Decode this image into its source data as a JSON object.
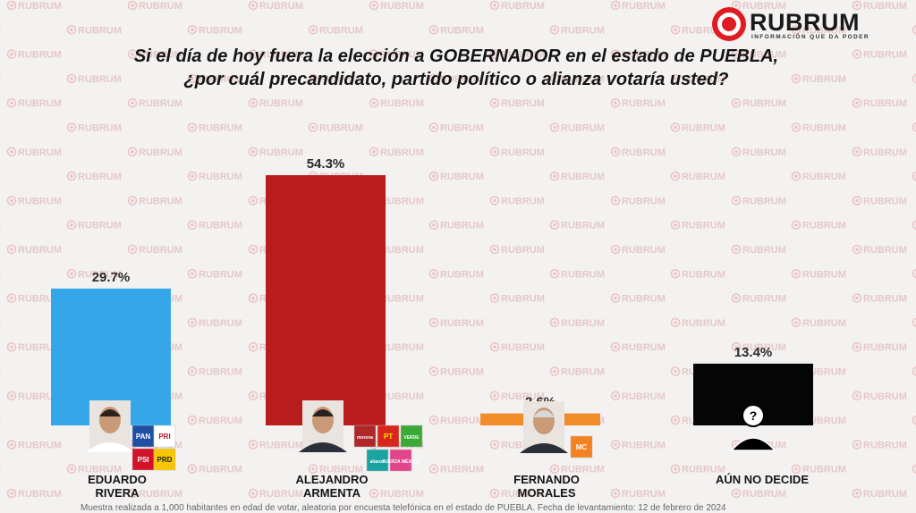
{
  "brand": {
    "name": "RUBRUM",
    "tagline": "INFORMACIÓN QUE DA PODER",
    "watermark_text": "RUBRUM",
    "color": "#e11b22"
  },
  "title": {
    "line1": "Si el día de hoy fuera la elección a GOBERNADOR en el estado de PUEBLA,",
    "line2": "¿por cuál precandidato, partido político o alianza votaría usted?"
  },
  "chart_data": {
    "type": "bar",
    "title": "Si el día de hoy fuera la elección a GOBERNADOR en el estado de PUEBLA, ¿por cuál precandidato, partido político o alianza votaría usted?",
    "categories": [
      [
        "EDUARDO",
        "RIVERA"
      ],
      [
        "ALEJANDRO",
        "ARMENTA"
      ],
      [
        "FERNANDO",
        "MORALES"
      ],
      [
        "AÚN NO DECIDE"
      ]
    ],
    "values": [
      29.7,
      54.3,
      2.6,
      13.4
    ],
    "value_labels": [
      "29.7%",
      "54.3%",
      "2.6%",
      "13.4%"
    ],
    "colors": [
      "#35a6e8",
      "#b91c1c",
      "#f28c28",
      "#050505"
    ],
    "party_logos": [
      [
        {
          "name": "pan-logo",
          "text": "PAN",
          "color": "#1f4fa3",
          "fg": "#ffffff"
        },
        {
          "name": "pri-logo",
          "text": "PRI",
          "color": "#ffffff",
          "fg": "#c8102e"
        },
        {
          "name": "psi-logo",
          "text": "PSI",
          "color": "#d3122a",
          "fg": "#ffffff"
        },
        {
          "name": "prd-logo",
          "text": "PRD",
          "color": "#f7c600",
          "fg": "#222222"
        }
      ],
      [
        {
          "name": "morena-logo",
          "text": "morena",
          "color": "#b0272a",
          "fg": "#ffffff"
        },
        {
          "name": "pt-logo",
          "text": "PT",
          "color": "#d9261c",
          "fg": "#ffde00"
        },
        {
          "name": "verde-logo",
          "text": "VERDE",
          "color": "#3aa935",
          "fg": "#ffffff"
        },
        {
          "name": "nueva-alianza-logo",
          "text": "alianza",
          "color": "#1aa3a3",
          "fg": "#ffffff"
        },
        {
          "name": "fuerza-mexico-logo",
          "text": "FUERZA MÉXICO",
          "color": "#e3458b",
          "fg": "#ffffff"
        }
      ],
      [
        {
          "name": "movimiento-ciudadano-logo",
          "text": "MC",
          "color": "#f58220",
          "fg": "#ffffff"
        }
      ],
      []
    ],
    "ylim": [
      0,
      60
    ],
    "grid": false,
    "legend": "none"
  },
  "footnote": "Muestra realizada a 1,000 habitantes en edad de votar, aleatoria por encuesta telefónica en el estado de PUEBLA. Fecha de levantamiento: 12 de febrero de 2024"
}
